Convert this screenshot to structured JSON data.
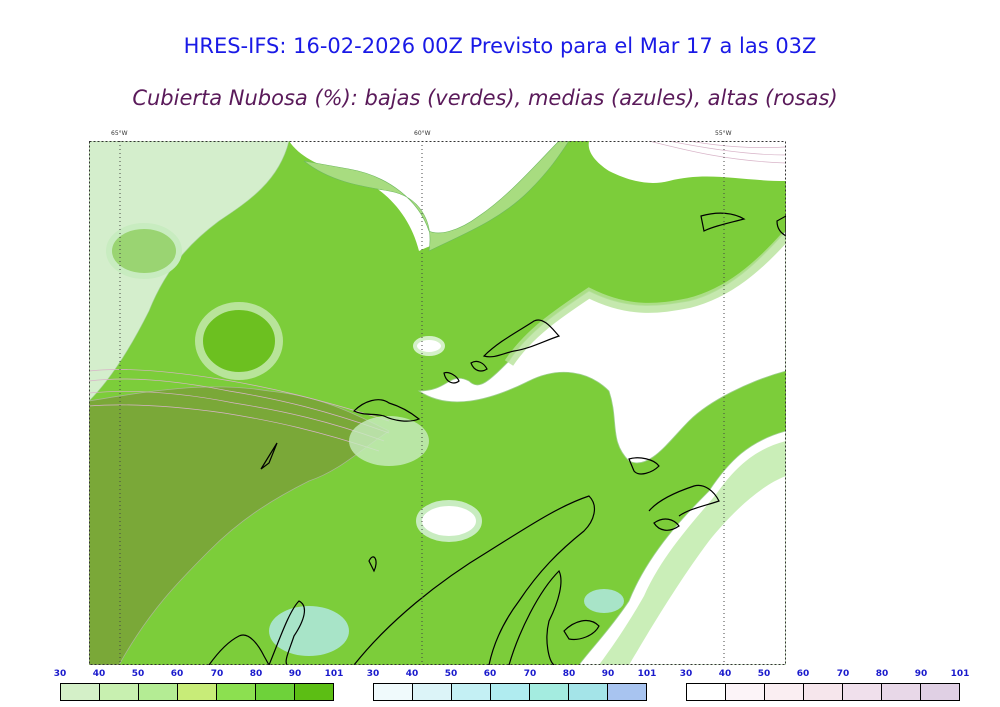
{
  "title": "HRES-IFS: 16-02-2026 00Z Previsto para el Mar 17 a las 03Z",
  "subtitle": "Cubierta Nubosa (%): bajas (verdes), medias (azules), altas (rosas)",
  "map": {
    "lon_labels": [
      "65°W",
      "60°W",
      "55°W"
    ],
    "colors": {
      "low_light": "#c8ecc0",
      "low_mid": "#8fd66a",
      "low_dark": "#6cc020",
      "low_overlap": "#7aa838",
      "high": "#f4e6ee",
      "outline": "#000000"
    }
  },
  "legends": [
    {
      "name": "bajas",
      "ticks": [
        "30",
        "40",
        "50",
        "60",
        "70",
        "80",
        "90",
        "101"
      ],
      "colors": [
        "#d4f0c8",
        "#c8f0b0",
        "#b4ec94",
        "#c8ec78",
        "#8ce050",
        "#6ed23a",
        "#5cbe14"
      ]
    },
    {
      "name": "medias",
      "ticks": [
        "30",
        "40",
        "50",
        "60",
        "70",
        "80",
        "90",
        "101"
      ],
      "colors": [
        "#f0fafc",
        "#dcf4f8",
        "#c4f0f4",
        "#b0ecf0",
        "#a4ece0",
        "#a4e4e8",
        "#a8c4f0"
      ]
    },
    {
      "name": "altas",
      "ticks": [
        "30",
        "40",
        "50",
        "60",
        "70",
        "80",
        "90",
        "101"
      ],
      "colors": [
        "#ffffff",
        "#fcf4f8",
        "#faeef2",
        "#f6e6ec",
        "#f0e0ec",
        "#e8d8e8",
        "#e0d0e4"
      ]
    }
  ]
}
